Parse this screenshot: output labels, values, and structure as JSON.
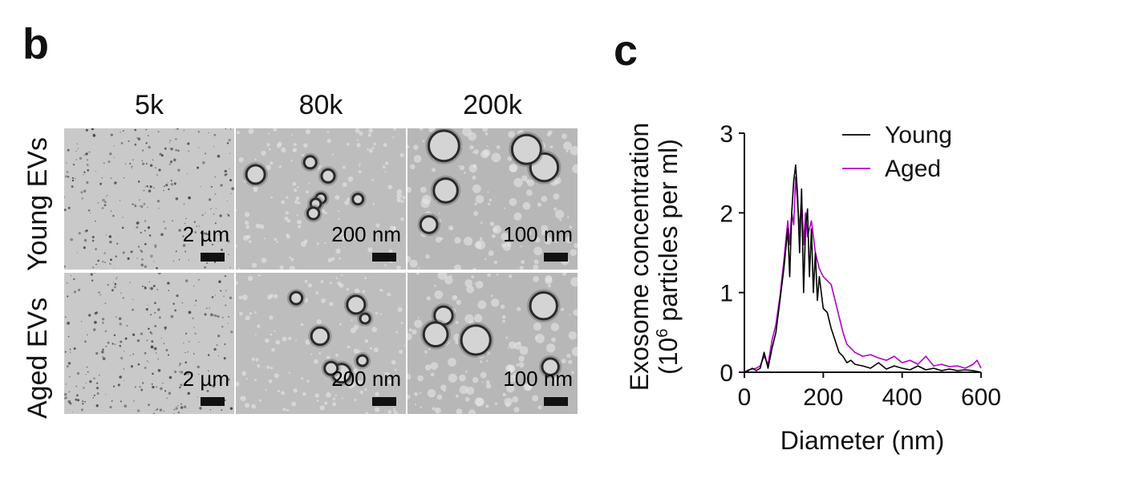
{
  "panel_b": {
    "letter": "b",
    "columns": [
      "5k",
      "80k",
      "200k"
    ],
    "rows": [
      "Young EVs",
      "Aged EVs"
    ],
    "scale_bars": [
      [
        "2 µm",
        "200 nm",
        "100 nm"
      ],
      [
        "2 µm",
        "200 nm",
        "100 nm"
      ]
    ]
  },
  "panel_c": {
    "letter": "c"
  },
  "chart_data": {
    "type": "line",
    "title": "",
    "xlabel": "Diameter (nm)",
    "ylabel_line1": "Exosome concentration",
    "ylabel_line2_prefix": "(10",
    "ylabel_line2_exp": "6",
    "ylabel_line2_suffix": " particles per ml)",
    "xlim": [
      0,
      600
    ],
    "ylim": [
      0,
      3
    ],
    "xticks": [
      0,
      200,
      400,
      600
    ],
    "yticks": [
      0,
      1,
      2,
      3
    ],
    "legend_position": "top-right",
    "grid": false,
    "series": [
      {
        "name": "Young",
        "color": "#000000",
        "x": [
          0,
          10,
          20,
          30,
          40,
          50,
          60,
          70,
          80,
          90,
          100,
          110,
          115,
          120,
          125,
          130,
          135,
          140,
          145,
          150,
          155,
          160,
          165,
          170,
          175,
          180,
          185,
          190,
          200,
          210,
          220,
          230,
          240,
          250,
          260,
          270,
          280,
          300,
          320,
          340,
          360,
          380,
          400,
          420,
          440,
          460,
          480,
          500,
          520,
          540,
          560,
          580,
          600
        ],
        "y": [
          0,
          0.02,
          0.05,
          0.02,
          0.05,
          0.25,
          0.05,
          0.3,
          0.5,
          0.9,
          1.3,
          1.8,
          1.2,
          2.0,
          2.4,
          2.6,
          2.2,
          1.5,
          2.3,
          1.0,
          1.8,
          2.05,
          1.2,
          1.8,
          1.0,
          1.5,
          0.9,
          1.2,
          0.8,
          0.75,
          0.55,
          0.4,
          0.25,
          0.2,
          0.12,
          0.15,
          0.1,
          0.08,
          0.05,
          0.12,
          0.04,
          0.08,
          0.05,
          0.03,
          0.08,
          0.03,
          0.05,
          0.02,
          0.04,
          0.02,
          0.03,
          0.02,
          0.0
        ]
      },
      {
        "name": "Aged",
        "color": "#b200c8",
        "x": [
          0,
          10,
          20,
          30,
          40,
          50,
          60,
          70,
          80,
          90,
          100,
          110,
          115,
          120,
          125,
          130,
          135,
          140,
          145,
          150,
          155,
          160,
          170,
          180,
          190,
          200,
          210,
          220,
          230,
          240,
          250,
          260,
          270,
          280,
          300,
          320,
          340,
          360,
          380,
          400,
          420,
          440,
          460,
          480,
          500,
          520,
          540,
          560,
          580,
          590,
          600
        ],
        "y": [
          0,
          0.03,
          0.04,
          0.05,
          0.08,
          0.2,
          0.1,
          0.4,
          0.6,
          0.95,
          1.4,
          1.9,
          1.6,
          2.0,
          1.85,
          2.45,
          2.1,
          1.8,
          2.2,
          1.6,
          2.0,
          1.7,
          1.9,
          1.5,
          1.3,
          1.2,
          1.15,
          1.1,
          0.9,
          0.7,
          0.5,
          0.35,
          0.3,
          0.25,
          0.2,
          0.22,
          0.18,
          0.15,
          0.2,
          0.12,
          0.15,
          0.1,
          0.2,
          0.08,
          0.1,
          0.07,
          0.08,
          0.05,
          0.1,
          0.15,
          0.05
        ]
      }
    ]
  }
}
